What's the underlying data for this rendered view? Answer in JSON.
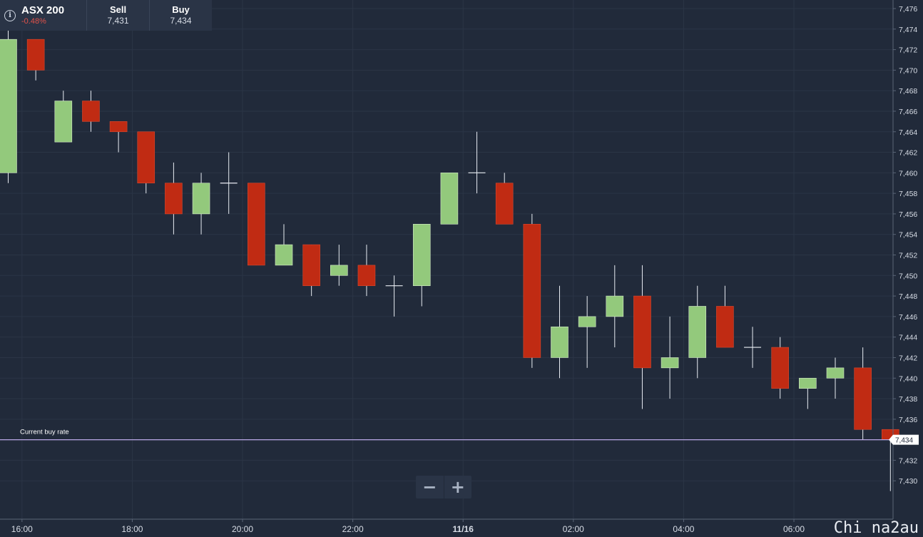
{
  "instrument": {
    "name": "ASX 200",
    "change": "-0.48%",
    "sell_label": "Sell",
    "sell_value": "7,431",
    "buy_label": "Buy",
    "buy_value": "7,434",
    "info_icon": "info-icon"
  },
  "zoom": {
    "out_label": "−",
    "in_label": "+",
    "out_icon": "minus-icon",
    "in_icon": "plus-icon"
  },
  "watermark": "Chi na2au",
  "colors": {
    "background": "#212a3a",
    "up": "#93c97c",
    "down": "#c02b13",
    "current_line": "#b9a7e6",
    "grid": "#2b3546",
    "axis_text": "#d8dde6"
  },
  "chart_data": {
    "type": "candlestick",
    "current_label": "Current buy rate",
    "current_value": 7434,
    "current_value_label": "7,434",
    "ylim": [
      7428,
      7476
    ],
    "y_ticks": [
      {
        "value": 7476,
        "label": "7,476"
      },
      {
        "value": 7474,
        "label": "7,474"
      },
      {
        "value": 7472,
        "label": "7,472"
      },
      {
        "value": 7470,
        "label": "7,470"
      },
      {
        "value": 7468,
        "label": "7,468"
      },
      {
        "value": 7466,
        "label": "7,466"
      },
      {
        "value": 7464,
        "label": "7,464"
      },
      {
        "value": 7462,
        "label": "7,462"
      },
      {
        "value": 7460,
        "label": "7,460"
      },
      {
        "value": 7458,
        "label": "7,458"
      },
      {
        "value": 7456,
        "label": "7,456"
      },
      {
        "value": 7454,
        "label": "7,454"
      },
      {
        "value": 7452,
        "label": "7,452"
      },
      {
        "value": 7450,
        "label": "7,450"
      },
      {
        "value": 7448,
        "label": "7,448"
      },
      {
        "value": 7446,
        "label": "7,446"
      },
      {
        "value": 7444,
        "label": "7,444"
      },
      {
        "value": 7442,
        "label": "7,442"
      },
      {
        "value": 7440,
        "label": "7,440"
      },
      {
        "value": 7438,
        "label": "7,438"
      },
      {
        "value": 7436,
        "label": "7,436"
      },
      {
        "value": 7434,
        "label": "7,434"
      },
      {
        "value": 7432,
        "label": "7,432"
      },
      {
        "value": 7430,
        "label": "7,430"
      }
    ],
    "x_ticks": [
      {
        "index": 0.5,
        "label": "16:00"
      },
      {
        "index": 4.5,
        "label": "18:00"
      },
      {
        "index": 8.5,
        "label": "20:00"
      },
      {
        "index": 12.5,
        "label": "22:00"
      },
      {
        "index": 16.5,
        "label": "11/16"
      },
      {
        "index": 20.5,
        "label": "02:00"
      },
      {
        "index": 24.5,
        "label": "04:00"
      },
      {
        "index": 28.5,
        "label": "06:00"
      }
    ],
    "candles": [
      {
        "o": 7460,
        "h": 7474,
        "l": 7459,
        "c": 7473
      },
      {
        "o": 7473,
        "h": 7473,
        "l": 7469,
        "c": 7470
      },
      {
        "o": 7463,
        "h": 7468,
        "l": 7463,
        "c": 7467
      },
      {
        "o": 7467,
        "h": 7468,
        "l": 7464,
        "c": 7465
      },
      {
        "o": 7465,
        "h": 7465,
        "l": 7462,
        "c": 7464
      },
      {
        "o": 7464,
        "h": 7464,
        "l": 7458,
        "c": 7459
      },
      {
        "o": 7459,
        "h": 7461,
        "l": 7454,
        "c": 7456
      },
      {
        "o": 7456,
        "h": 7460,
        "l": 7454,
        "c": 7459
      },
      {
        "o": 7459,
        "h": 7462,
        "l": 7456,
        "c": 7459
      },
      {
        "o": 7459,
        "h": 7459,
        "l": 7451,
        "c": 7451
      },
      {
        "o": 7451,
        "h": 7455,
        "l": 7451,
        "c": 7453
      },
      {
        "o": 7453,
        "h": 7453,
        "l": 7448,
        "c": 7449
      },
      {
        "o": 7450,
        "h": 7453,
        "l": 7449,
        "c": 7451
      },
      {
        "o": 7451,
        "h": 7453,
        "l": 7448,
        "c": 7449
      },
      {
        "o": 7449,
        "h": 7450,
        "l": 7446,
        "c": 7449
      },
      {
        "o": 7449,
        "h": 7455,
        "l": 7447,
        "c": 7455
      },
      {
        "o": 7455,
        "h": 7460,
        "l": 7455,
        "c": 7460
      },
      {
        "o": 7460,
        "h": 7464,
        "l": 7458,
        "c": 7460
      },
      {
        "o": 7459,
        "h": 7460,
        "l": 7455,
        "c": 7455
      },
      {
        "o": 7455,
        "h": 7456,
        "l": 7441,
        "c": 7442
      },
      {
        "o": 7442,
        "h": 7449,
        "l": 7440,
        "c": 7445
      },
      {
        "o": 7445,
        "h": 7448,
        "l": 7441,
        "c": 7446
      },
      {
        "o": 7446,
        "h": 7451,
        "l": 7443,
        "c": 7448
      },
      {
        "o": 7448,
        "h": 7451,
        "l": 7437,
        "c": 7441
      },
      {
        "o": 7441,
        "h": 7446,
        "l": 7438,
        "c": 7442
      },
      {
        "o": 7442,
        "h": 7449,
        "l": 7440,
        "c": 7447
      },
      {
        "o": 7447,
        "h": 7449,
        "l": 7443,
        "c": 7443
      },
      {
        "o": 7443,
        "h": 7445,
        "l": 7441,
        "c": 7443
      },
      {
        "o": 7443,
        "h": 7444,
        "l": 7438,
        "c": 7439
      },
      {
        "o": 7439,
        "h": 7440,
        "l": 7437,
        "c": 7440
      },
      {
        "o": 7440,
        "h": 7442,
        "l": 7438,
        "c": 7441
      },
      {
        "o": 7441,
        "h": 7443,
        "l": 7434,
        "c": 7435
      },
      {
        "o": 7435,
        "h": 7435,
        "l": 7429,
        "c": 7434
      }
    ]
  }
}
